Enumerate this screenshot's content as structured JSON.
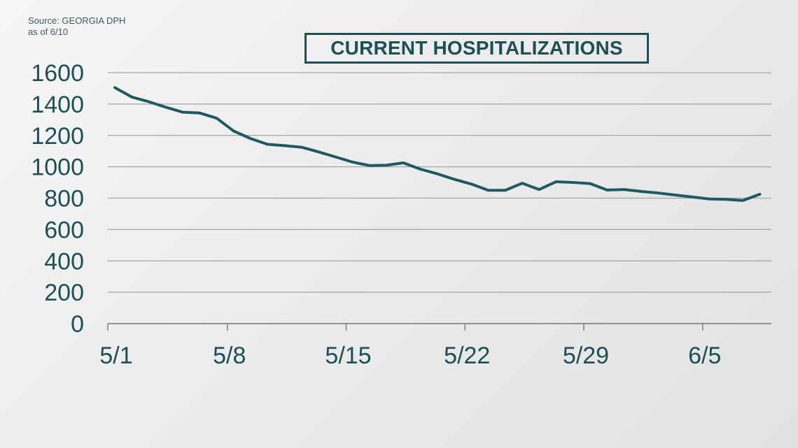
{
  "source": {
    "line1": "Source: GEORGIA DPH",
    "line2": "as of 6/10"
  },
  "chart_data": {
    "type": "line",
    "title": "CURRENT HOSPITALIZATIONS",
    "xlabel": "",
    "ylabel": "",
    "ylim": [
      0,
      1600
    ],
    "yticks": [
      0,
      200,
      400,
      600,
      800,
      1000,
      1200,
      1400,
      1600
    ],
    "x_tick_labels": [
      "5/1",
      "5/8",
      "5/15",
      "5/22",
      "5/29",
      "6/5"
    ],
    "x": [
      "5/1",
      "5/2",
      "5/3",
      "5/4",
      "5/5",
      "5/6",
      "5/7",
      "5/8",
      "5/9",
      "5/10",
      "5/11",
      "5/12",
      "5/13",
      "5/14",
      "5/15",
      "5/16",
      "5/17",
      "5/18",
      "5/19",
      "5/20",
      "5/21",
      "5/22",
      "5/23",
      "5/24",
      "5/25",
      "5/26",
      "5/27",
      "5/28",
      "5/29",
      "5/30",
      "5/31",
      "6/1",
      "6/2",
      "6/3",
      "6/4",
      "6/5",
      "6/6",
      "6/7",
      "6/8"
    ],
    "series": [
      {
        "name": "",
        "values": [
          1505,
          1445,
          1415,
          1380,
          1348,
          1343,
          1310,
          1228,
          1180,
          1143,
          1135,
          1125,
          1095,
          1063,
          1030,
          1008,
          1010,
          1025,
          985,
          955,
          920,
          890,
          850,
          850,
          895,
          855,
          905,
          900,
          893,
          852,
          855,
          843,
          833,
          820,
          808,
          795,
          792,
          785,
          825
        ]
      }
    ],
    "grid": true,
    "legend": "none",
    "colors": {
      "line": "#1f5961",
      "text": "#1f4f56",
      "grid": "#9fa6a8",
      "axis": "#6f7a7c"
    }
  }
}
